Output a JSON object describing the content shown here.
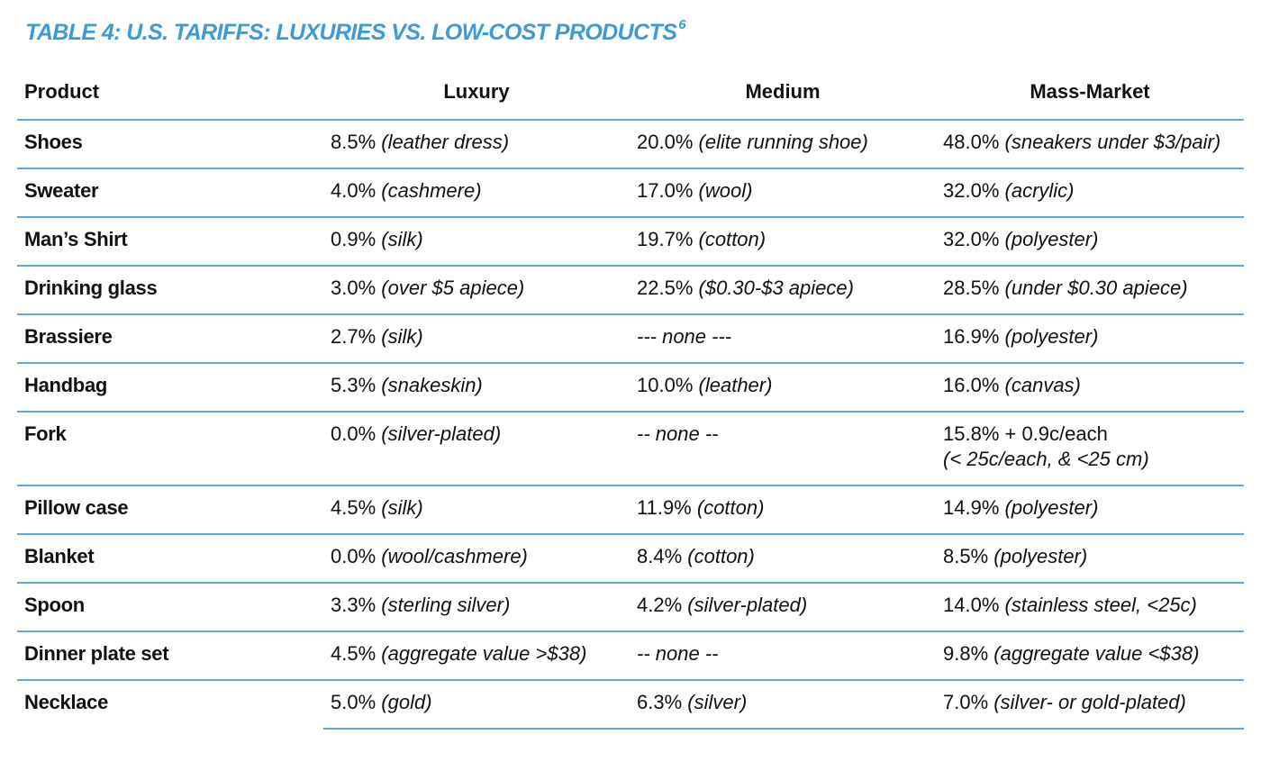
{
  "title": {
    "text": "TABLE 4: U.S. TARIFFS: LUXURIES VS. LOW-COST PRODUCTS",
    "footnote": "6"
  },
  "headers": {
    "product": "Product",
    "luxury": "Luxury",
    "medium": "Medium",
    "mass": "Mass-Market"
  },
  "rows": [
    {
      "product": "Shoes",
      "luxury": {
        "rate": "8.5%",
        "note": "(leather dress)"
      },
      "medium": {
        "rate": "20.0%",
        "note": "(elite running shoe)"
      },
      "mass": {
        "rate": "48.0%",
        "note": "(sneakers under $3/pair)"
      }
    },
    {
      "product": "Sweater",
      "luxury": {
        "rate": "4.0%",
        "note": "(cashmere)"
      },
      "medium": {
        "rate": "17.0%",
        "note": "(wool)"
      },
      "mass": {
        "rate": "32.0%",
        "note": "(acrylic)"
      }
    },
    {
      "product": "Man’s Shirt",
      "luxury": {
        "rate": "0.9%",
        "note": "(silk)"
      },
      "medium": {
        "rate": "19.7%",
        "note": "(cotton)"
      },
      "mass": {
        "rate": "32.0%",
        "note": "(polyester)"
      }
    },
    {
      "product": "Drinking glass",
      "luxury": {
        "rate": "3.0%",
        "note": "(over $5 apiece)"
      },
      "medium": {
        "rate": "22.5%",
        "note": "($0.30-$3 apiece)"
      },
      "mass": {
        "rate": "28.5%",
        "note": "(under $0.30 apiece)"
      }
    },
    {
      "product": "Brassiere",
      "luxury": {
        "rate": "2.7%",
        "note": "(silk)"
      },
      "medium": {
        "rate": "",
        "note": "--- none ---"
      },
      "mass": {
        "rate": "16.9%",
        "note": "(polyester)"
      }
    },
    {
      "product": "Handbag",
      "luxury": {
        "rate": "5.3%",
        "note": "(snakeskin)"
      },
      "medium": {
        "rate": "10.0%",
        "note": "(leather)"
      },
      "mass": {
        "rate": "16.0%",
        "note": "(canvas)"
      }
    },
    {
      "product": "Fork",
      "luxury": {
        "rate": "0.0%",
        "note": "(silver-plated)"
      },
      "medium": {
        "rate": "",
        "note": "-- none --"
      },
      "mass": {
        "rate": "15.8% + 0.9c/each",
        "note": "(< 25c/each, & <25 cm)"
      }
    },
    {
      "product": "Pillow case",
      "luxury": {
        "rate": "4.5%",
        "note": "(silk)"
      },
      "medium": {
        "rate": "11.9%",
        "note": "(cotton)"
      },
      "mass": {
        "rate": "14.9%",
        "note": "(polyester)"
      }
    },
    {
      "product": "Blanket",
      "luxury": {
        "rate": "0.0%",
        "note": "(wool/cashmere)"
      },
      "medium": {
        "rate": "8.4%",
        "note": "(cotton)"
      },
      "mass": {
        "rate": "8.5%",
        "note": "(polyester)"
      }
    },
    {
      "product": "Spoon",
      "luxury": {
        "rate": "3.3%",
        "note": "(sterling silver)"
      },
      "medium": {
        "rate": "4.2%",
        "note": "(silver-plated)"
      },
      "mass": {
        "rate": "14.0%",
        "note": "(stainless steel, <25c)"
      }
    },
    {
      "product": "Dinner plate set",
      "luxury": {
        "rate": "4.5%",
        "note": "(aggregate value >$38)"
      },
      "medium": {
        "rate": "",
        "note": "-- none --"
      },
      "mass": {
        "rate": "9.8%",
        "note": "(aggregate value <$38)"
      }
    },
    {
      "product": "Necklace",
      "luxury": {
        "rate": "5.0%",
        "note": "(gold)"
      },
      "medium": {
        "rate": "6.3%",
        "note": "(silver)"
      },
      "mass": {
        "rate": "7.0%",
        "note": "(silver- or gold-plated)"
      }
    }
  ],
  "colors": {
    "title": "#3d9ad8",
    "rule": "#5aa7de",
    "text": "#111111"
  }
}
